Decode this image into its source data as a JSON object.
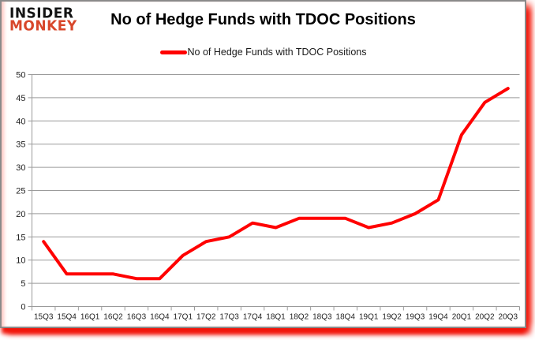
{
  "logo": {
    "line1": "INSIDER",
    "line2": "MONKEY",
    "line1_color": "#141414",
    "line2_color": "#d8472b"
  },
  "header": {
    "title": "No of Hedge Funds with TDOC Positions"
  },
  "legend": {
    "label": "No of Hedge Funds with TDOC Positions"
  },
  "chart_data": {
    "type": "line",
    "title": "No of Hedge Funds with TDOC Positions",
    "categories": [
      "15Q3",
      "15Q4",
      "16Q1",
      "16Q2",
      "16Q3",
      "16Q4",
      "17Q1",
      "17Q2",
      "17Q3",
      "17Q4",
      "18Q1",
      "18Q2",
      "18Q3",
      "18Q4",
      "19Q1",
      "19Q2",
      "19Q3",
      "19Q4",
      "20Q1",
      "20Q2",
      "20Q3"
    ],
    "series": [
      {
        "name": "No of Hedge Funds with TDOC Positions",
        "color": "#ff0000",
        "values": [
          14,
          7,
          7,
          7,
          6,
          6,
          11,
          14,
          15,
          18,
          17,
          19,
          19,
          19,
          17,
          18,
          20,
          23,
          37,
          44,
          47
        ]
      }
    ],
    "xlabel": "",
    "ylabel": "",
    "ylim": [
      0,
      50
    ],
    "yticks": [
      0,
      5,
      10,
      15,
      20,
      25,
      30,
      35,
      40,
      45,
      50
    ],
    "grid": "horizontal",
    "legend_position": "top-center",
    "gridline_color": "#9b9b9b",
    "axis_label_color": "#1f1f1f"
  }
}
